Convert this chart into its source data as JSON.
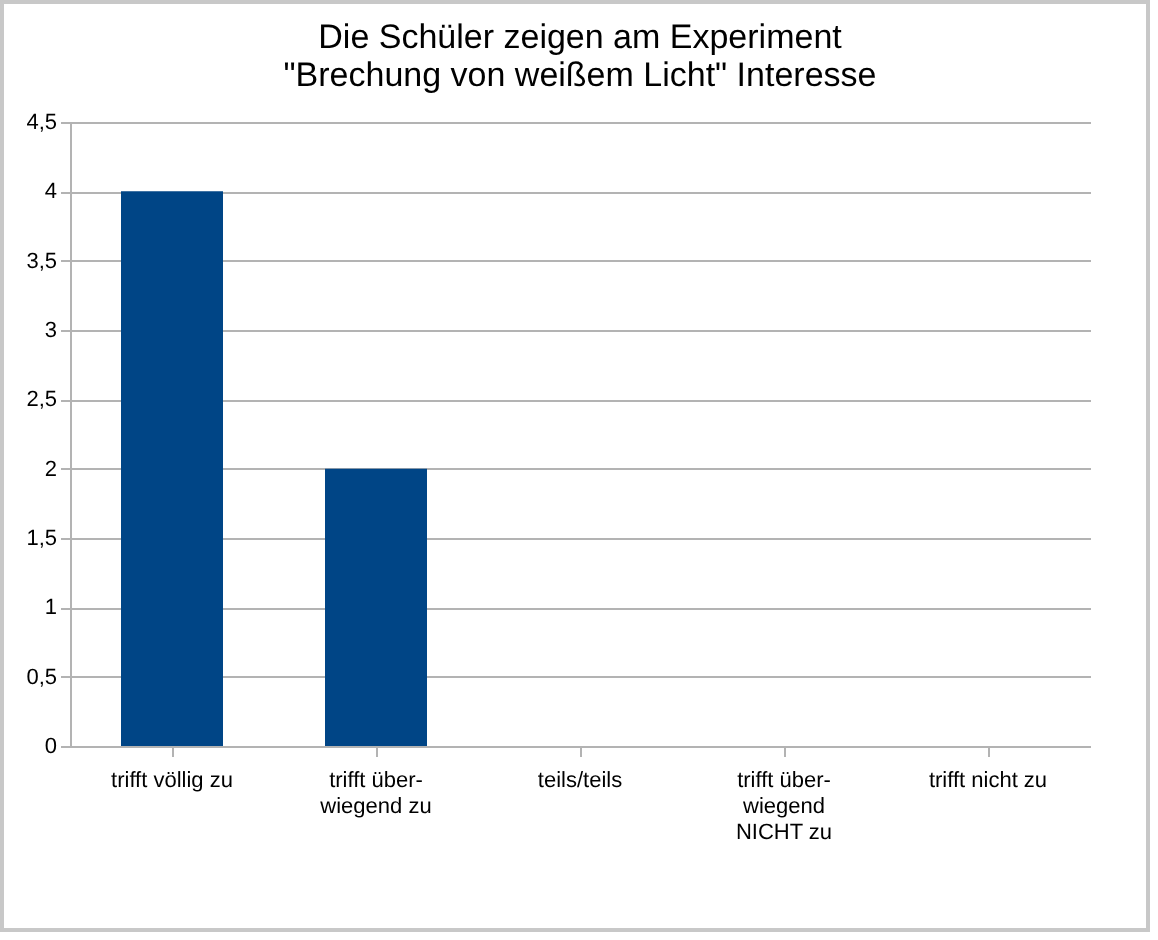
{
  "chart_data": {
    "type": "bar",
    "title": "Die Schüler zeigen am Experiment\n\"Brechung von weißem Licht\" Interesse",
    "categories": [
      "trifft völlig zu",
      "trifft über-\nwiegend zu",
      "teils/teils",
      "trifft über-\nwiegend\nNICHT zu",
      "trifft nicht zu"
    ],
    "values": [
      4,
      2,
      0,
      0,
      0
    ],
    "color": "#004586",
    "ylim": [
      0,
      4.5
    ],
    "yticks": [
      0,
      {
        "value": 0.5,
        "label": "0,5"
      },
      1,
      {
        "value": 1.5,
        "label": "1,5"
      },
      2,
      {
        "value": 2.5,
        "label": "2,5"
      },
      3,
      {
        "value": 3.5,
        "label": "3,5"
      },
      4,
      {
        "value": 4.5,
        "label": "4,5"
      }
    ],
    "grid": "y"
  }
}
